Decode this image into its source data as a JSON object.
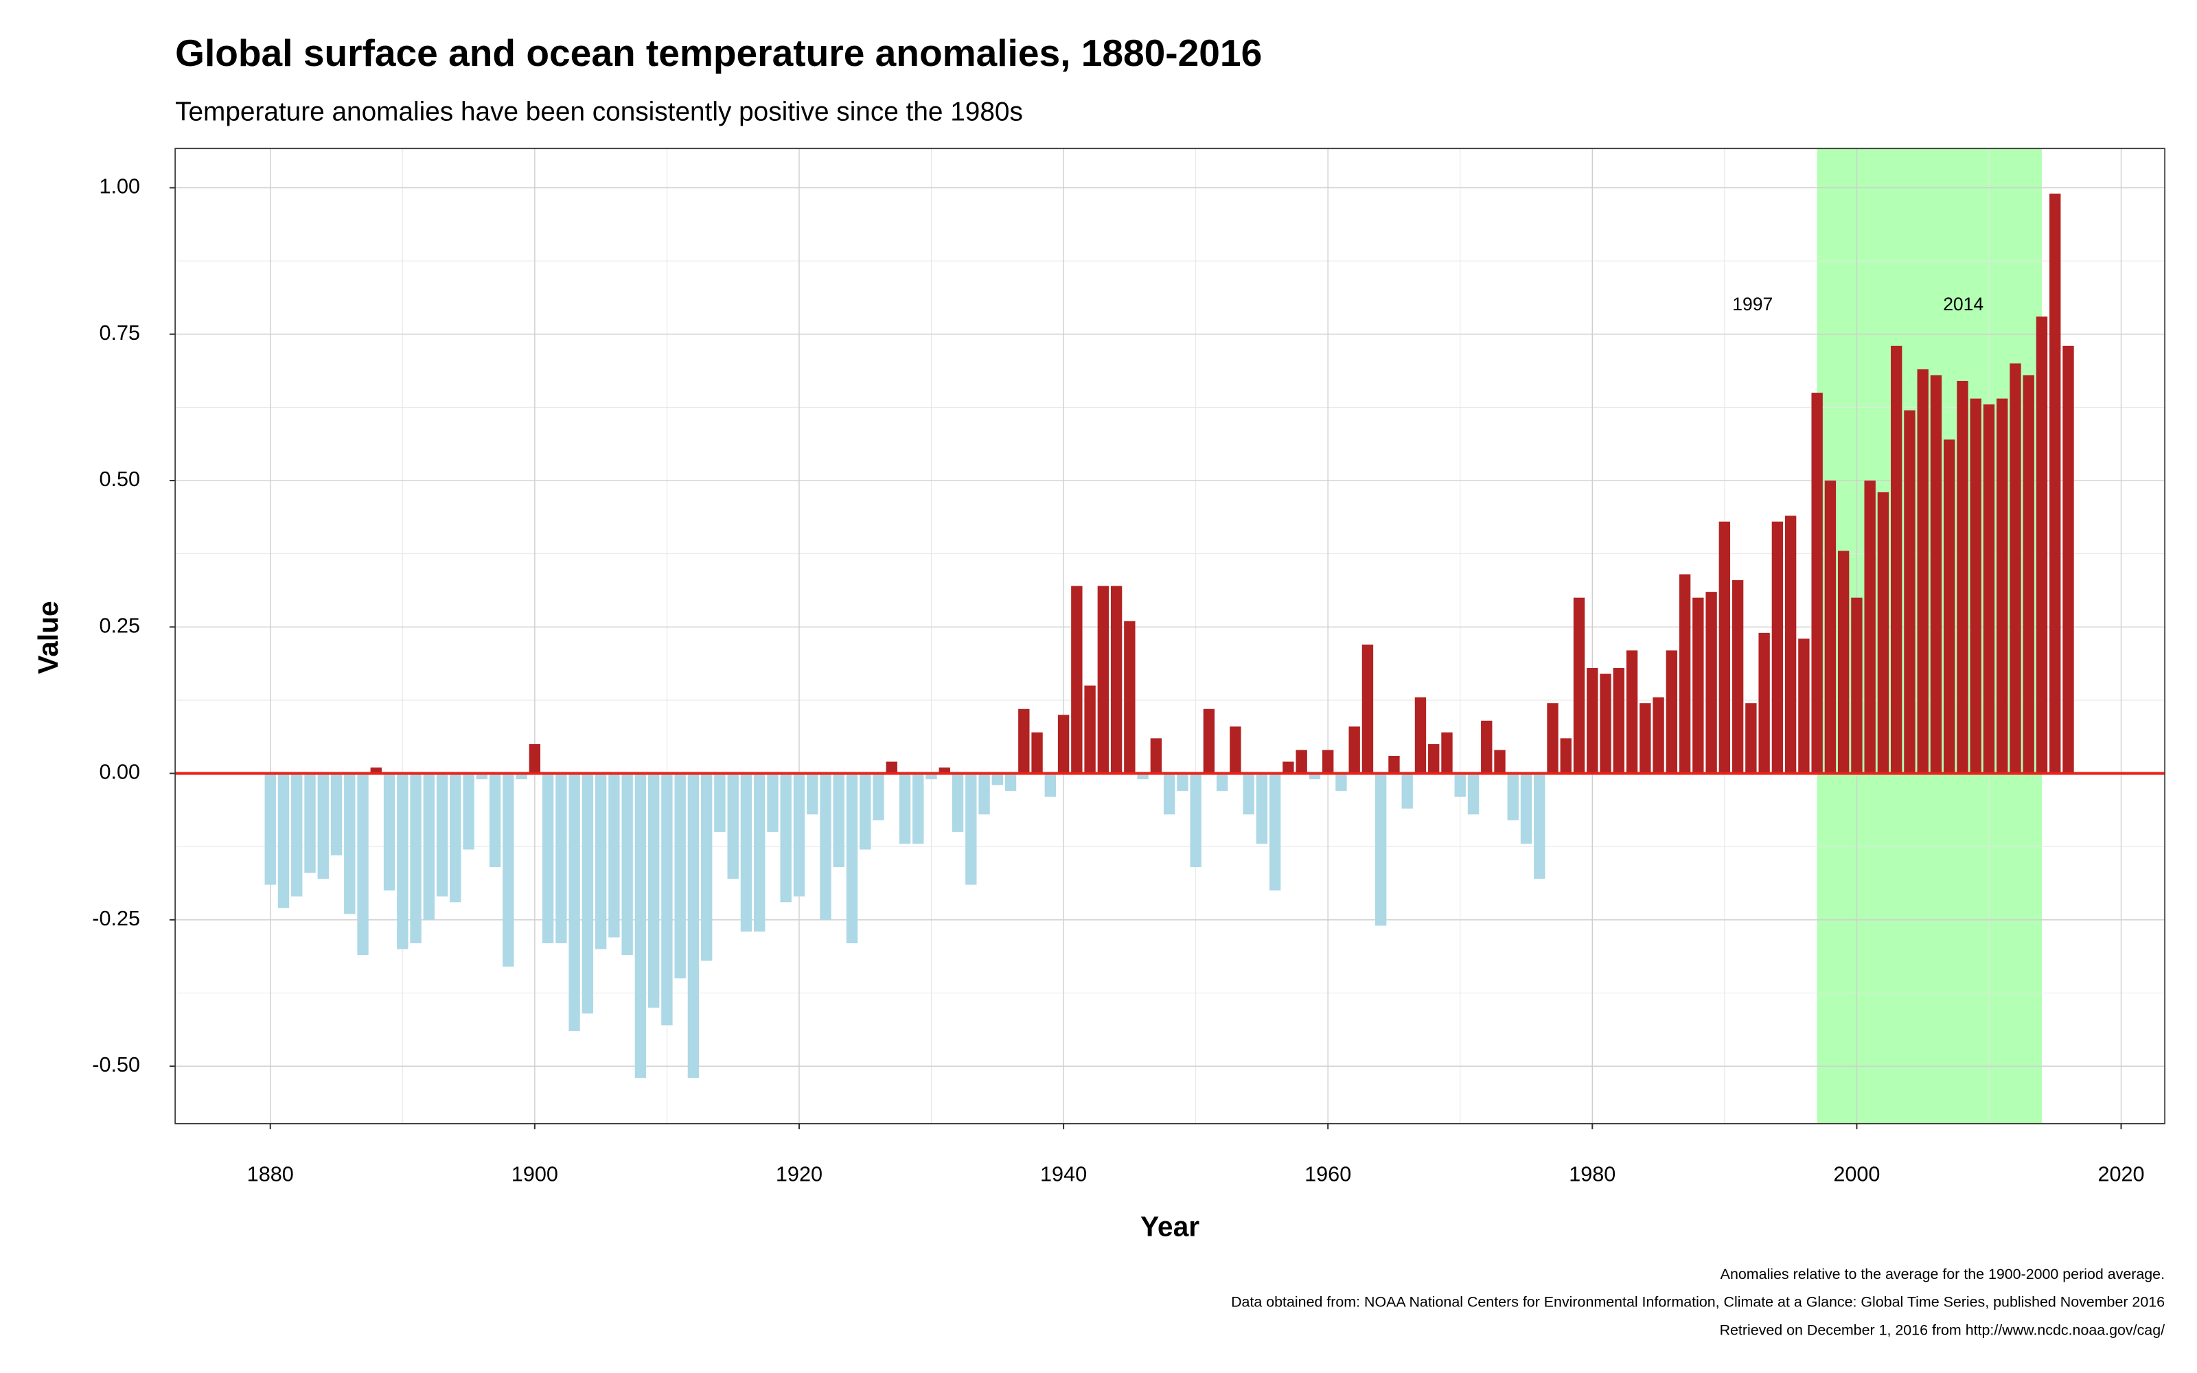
{
  "chart_data": {
    "type": "bar",
    "title": "Global surface and ocean temperature anomalies, 1880-2016",
    "subtitle": "Temperature anomalies have been consistently positive since the 1980s",
    "x_label": "Year",
    "y_label": "Value",
    "x": [
      1880,
      1881,
      1882,
      1883,
      1884,
      1885,
      1886,
      1887,
      1888,
      1889,
      1890,
      1891,
      1892,
      1893,
      1894,
      1895,
      1896,
      1897,
      1898,
      1899,
      1900,
      1901,
      1902,
      1903,
      1904,
      1905,
      1906,
      1907,
      1908,
      1909,
      1910,
      1911,
      1912,
      1913,
      1914,
      1915,
      1916,
      1917,
      1918,
      1919,
      1920,
      1921,
      1922,
      1923,
      1924,
      1925,
      1926,
      1927,
      1928,
      1929,
      1930,
      1931,
      1932,
      1933,
      1934,
      1935,
      1936,
      1937,
      1938,
      1939,
      1940,
      1941,
      1942,
      1943,
      1944,
      1945,
      1946,
      1947,
      1948,
      1949,
      1950,
      1951,
      1952,
      1953,
      1954,
      1955,
      1956,
      1957,
      1958,
      1959,
      1960,
      1961,
      1962,
      1963,
      1964,
      1965,
      1966,
      1967,
      1968,
      1969,
      1970,
      1971,
      1972,
      1973,
      1974,
      1975,
      1976,
      1977,
      1978,
      1979,
      1980,
      1981,
      1982,
      1983,
      1984,
      1985,
      1986,
      1987,
      1988,
      1989,
      1990,
      1991,
      1992,
      1993,
      1994,
      1995,
      1996,
      1997,
      1998,
      1999,
      2000,
      2001,
      2002,
      2003,
      2004,
      2005,
      2006,
      2007,
      2008,
      2009,
      2010,
      2011,
      2012,
      2013,
      2014,
      2015,
      2016
    ],
    "values": [
      -0.19,
      -0.23,
      -0.21,
      -0.17,
      -0.18,
      -0.14,
      -0.24,
      -0.31,
      0.01,
      -0.2,
      -0.3,
      -0.29,
      -0.25,
      -0.21,
      -0.22,
      -0.13,
      -0.01,
      -0.16,
      -0.33,
      -0.01,
      0.05,
      -0.29,
      -0.29,
      -0.44,
      -0.41,
      -0.3,
      -0.28,
      -0.31,
      -0.52,
      -0.4,
      -0.43,
      -0.35,
      -0.52,
      -0.32,
      -0.1,
      -0.18,
      -0.27,
      -0.27,
      -0.1,
      -0.22,
      -0.21,
      -0.07,
      -0.25,
      -0.16,
      -0.29,
      -0.13,
      -0.08,
      0.02,
      -0.12,
      -0.12,
      -0.01,
      0.01,
      -0.1,
      -0.19,
      -0.07,
      -0.02,
      -0.03,
      0.11,
      0.07,
      -0.04,
      0.1,
      0.32,
      0.15,
      0.32,
      0.32,
      0.26,
      -0.01,
      0.06,
      -0.07,
      -0.03,
      -0.16,
      0.11,
      -0.03,
      0.08,
      -0.07,
      -0.12,
      -0.2,
      0.02,
      0.04,
      -0.01,
      0.04,
      -0.03,
      0.08,
      0.22,
      -0.26,
      0.03,
      -0.06,
      0.13,
      0.05,
      0.07,
      -0.04,
      -0.07,
      0.09,
      0.04,
      -0.08,
      -0.12,
      -0.18,
      0.12,
      0.06,
      0.3,
      0.18,
      0.17,
      0.18,
      0.21,
      0.12,
      0.13,
      0.21,
      0.34,
      0.3,
      0.31,
      0.43,
      0.33,
      0.12,
      0.24,
      0.43,
      0.44,
      0.23,
      0.65,
      0.5,
      0.38,
      0.3,
      0.5,
      0.48,
      0.73,
      0.62,
      0.69,
      0.68,
      0.57,
      0.67,
      0.64,
      0.63,
      0.64,
      0.7,
      0.68,
      0.78,
      0.99,
      0.73
    ],
    "positive_color": "#b22222",
    "negative_color": "#add8e6",
    "zero_line": {
      "value": 0,
      "color": "#e8241c"
    },
    "highlight": {
      "start": 1997,
      "end": 2014,
      "color": "#b3ffb3"
    },
    "xlim": [
      1872.8,
      2023.3
    ],
    "ylim": [
      -0.598,
      1.067
    ],
    "xticks": [
      1880,
      1900,
      1920,
      1940,
      1960,
      1980,
      2000,
      2020
    ],
    "yticks": [
      {
        "value": -0.5,
        "label": "-0.50"
      },
      {
        "value": -0.25,
        "label": "-0.25"
      },
      {
        "value": 0,
        "label": "0.00"
      },
      {
        "value": 0.25,
        "label": "0.25"
      },
      {
        "value": 0.5,
        "label": "0.50"
      },
      {
        "value": 0.75,
        "label": "0.75"
      },
      {
        "value": 1,
        "label": "1.00"
      }
    ],
    "grid": true,
    "footnotes": [
      "Anomalies relative to the average for the 1900-2000 period average.",
      "Data obtained from: NOAA National Centers for Environmental Information, Climate at a Glance: Global Time Series, published November 2016",
      "Retrieved on December 1, 2016 from http://www.ncdc.noaa.gov/cag/"
    ]
  }
}
